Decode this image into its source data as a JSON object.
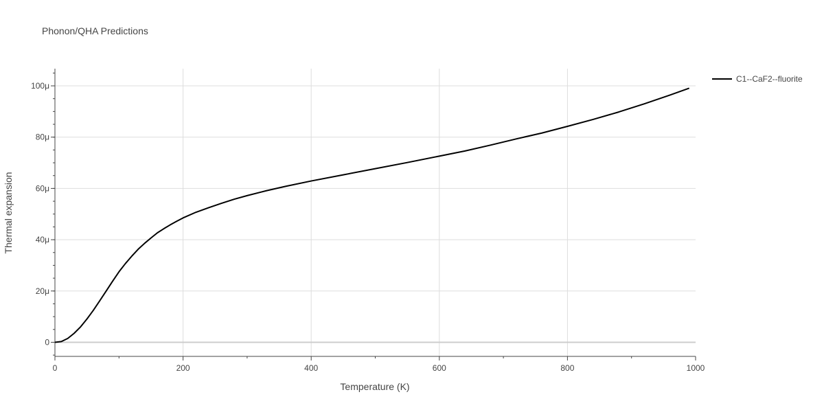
{
  "chart_data": {
    "type": "line",
    "title": "Phonon/QHA Predictions",
    "xlabel": "Temperature (K)",
    "ylabel": "Thermal expansion",
    "xlim": [
      0,
      1000
    ],
    "ylim": [
      -5.5e-06,
      0.0001067
    ],
    "xticks": [
      {
        "value": 0,
        "label": "0"
      },
      {
        "value": 200,
        "label": "200"
      },
      {
        "value": 400,
        "label": "400"
      },
      {
        "value": 600,
        "label": "600"
      },
      {
        "value": 800,
        "label": "800"
      },
      {
        "value": 1000,
        "label": "1000"
      }
    ],
    "yticks": [
      {
        "value": 0,
        "label": "0"
      },
      {
        "value": 2e-05,
        "label": "20μ"
      },
      {
        "value": 4e-05,
        "label": "40μ"
      },
      {
        "value": 6e-05,
        "label": "60μ"
      },
      {
        "value": 8e-05,
        "label": "80μ"
      },
      {
        "value": 0.0001,
        "label": "100μ"
      }
    ],
    "grid": true,
    "legend_position": "top-right",
    "series": [
      {
        "name": "C1--CaF2--fluorite",
        "color": "#000000",
        "x": [
          0,
          10,
          20,
          30,
          40,
          50,
          60,
          70,
          80,
          90,
          100,
          110,
          120,
          130,
          140,
          150,
          160,
          170,
          180,
          190,
          200,
          220,
          240,
          260,
          280,
          300,
          330,
          360,
          400,
          450,
          500,
          550,
          600,
          640,
          680,
          720,
          760,
          800,
          840,
          880,
          920,
          960,
          990
        ],
        "y": [
          0,
          3e-07,
          1.5e-06,
          3.5e-06,
          6e-06,
          9.1e-06,
          1.25e-05,
          1.62e-05,
          2e-05,
          2.38e-05,
          2.75e-05,
          3.07e-05,
          3.36e-05,
          3.63e-05,
          3.86e-05,
          4.07e-05,
          4.27e-05,
          4.43e-05,
          4.58e-05,
          4.72e-05,
          4.85e-05,
          5.07e-05,
          5.25e-05,
          5.42e-05,
          5.58e-05,
          5.72e-05,
          5.91e-05,
          6.08e-05,
          6.29e-05,
          6.53e-05,
          6.77e-05,
          7.01e-05,
          7.26e-05,
          7.46e-05,
          7.69e-05,
          7.93e-05,
          8.16e-05,
          8.42e-05,
          8.69e-05,
          8.98e-05,
          9.3e-05,
          9.64e-05,
          9.91e-05
        ]
      }
    ]
  }
}
